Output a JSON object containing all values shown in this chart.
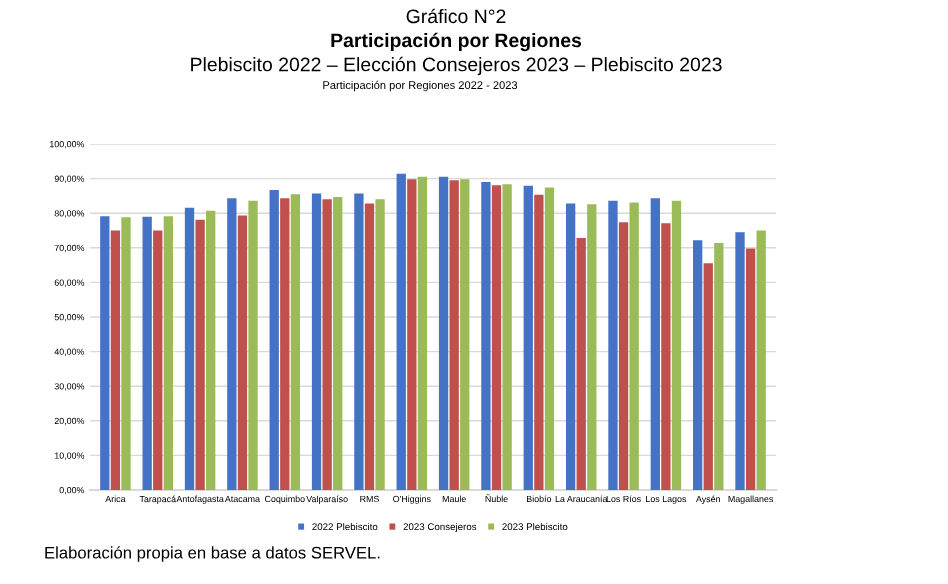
{
  "chart_data": {
    "type": "bar",
    "title": "Participación por Regiones",
    "subtitle": "Plebiscito 2022 – Elección Consejeros 2023 – Plebiscito 2023",
    "annotations": [
      "Gráfico N°2",
      "Participación por Regiones 2022 - 2023",
      "Elaboración propia en base a datos SERVEL."
    ],
    "categories": [
      "Arica",
      "Tarapacá",
      "Antofagasta",
      "Atacama",
      "Coquimbo",
      "Valparaíso",
      "RMS",
      "O'Higgins",
      "Maule",
      "Ñuble",
      "Biobío",
      "La Araucanía",
      "Los Ríos",
      "Los Lagos",
      "Aysén",
      "Magallanes"
    ],
    "series": [
      {
        "name": "2022 Plebiscito",
        "color": "#4472c4",
        "values": [
          79.1,
          79.0,
          81.6,
          84.3,
          86.7,
          85.7,
          85.7,
          91.4,
          90.5,
          89.0,
          87.9,
          82.8,
          83.6,
          84.3,
          72.2,
          74.5
        ]
      },
      {
        "name": "2023 Consejeros",
        "color": "#c0504d",
        "values": [
          75.0,
          75.0,
          78.1,
          79.3,
          84.3,
          84.0,
          82.8,
          89.8,
          89.5,
          88.1,
          85.3,
          72.8,
          77.4,
          77.1,
          65.5,
          69.8
        ]
      },
      {
        "name": "2023 Plebiscito",
        "color": "#9bbb59",
        "values": [
          78.8,
          79.1,
          80.7,
          83.6,
          85.5,
          84.7,
          84.0,
          90.5,
          89.8,
          88.4,
          87.4,
          82.6,
          83.1,
          83.6,
          71.4,
          75.0
        ]
      }
    ],
    "ylim": [
      0,
      100
    ],
    "yticks": [
      {
        "value": 0,
        "label": "0,00%"
      },
      {
        "value": 10,
        "label": "10,00%"
      },
      {
        "value": 20,
        "label": "20,00%"
      },
      {
        "value": 30,
        "label": "30,00%"
      },
      {
        "value": 40,
        "label": "40,00%"
      },
      {
        "value": 50,
        "label": "50,00%"
      },
      {
        "value": 60,
        "label": "60,00%"
      },
      {
        "value": 70,
        "label": "70,00%"
      },
      {
        "value": 80,
        "label": "80,00%"
      },
      {
        "value": 90,
        "label": "90,00%"
      },
      {
        "value": 100,
        "label": "100,00%"
      }
    ],
    "grid": "y",
    "legend": "bottom"
  }
}
